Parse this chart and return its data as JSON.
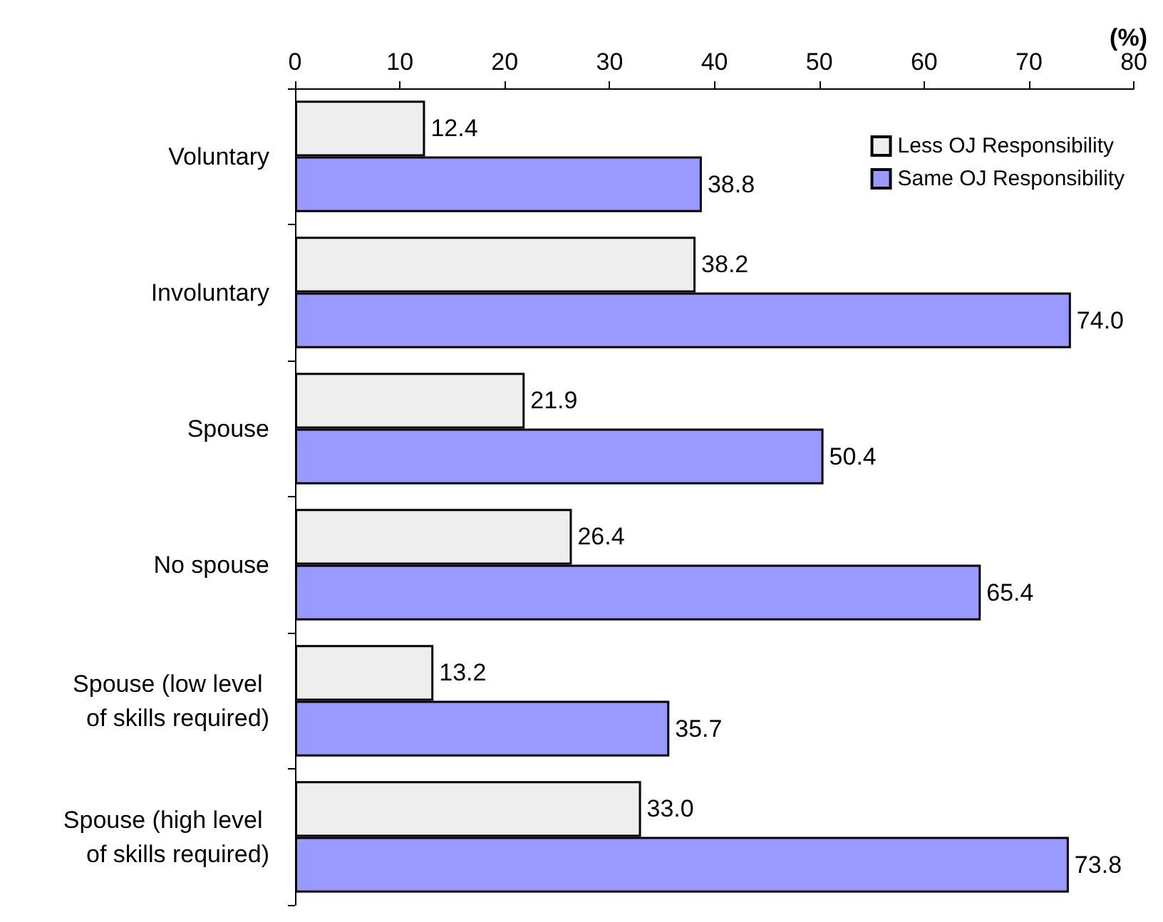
{
  "chart_data": {
    "type": "bar",
    "orientation": "horizontal",
    "xlabel": "(%)",
    "categories": [
      "Voluntary",
      "Involuntary",
      "Spouse",
      "No spouse",
      "Spouse (low level of skills required)",
      "Spouse (high level of skills required)"
    ],
    "series": [
      {
        "name": "Less OJ Responsibility",
        "color": "#eeeeee",
        "values": [
          12.4,
          38.2,
          21.9,
          26.4,
          13.2,
          33.0
        ],
        "value_labels": [
          "12.4",
          "38.2",
          "21.9",
          "26.4",
          "13.2",
          "33.0"
        ]
      },
      {
        "name": "Same OJ Responsibility",
        "color": "#9999ff",
        "values": [
          38.8,
          74.0,
          50.4,
          65.4,
          35.7,
          73.8
        ],
        "value_labels": [
          "38.8",
          "74.0",
          "50.4",
          "65.4",
          "35.7",
          "73.8"
        ]
      }
    ],
    "xlim": [
      0,
      80
    ],
    "xticks": [
      0,
      10,
      20,
      30,
      40,
      50,
      60,
      70,
      80
    ],
    "legend": "top right",
    "grid": false
  }
}
